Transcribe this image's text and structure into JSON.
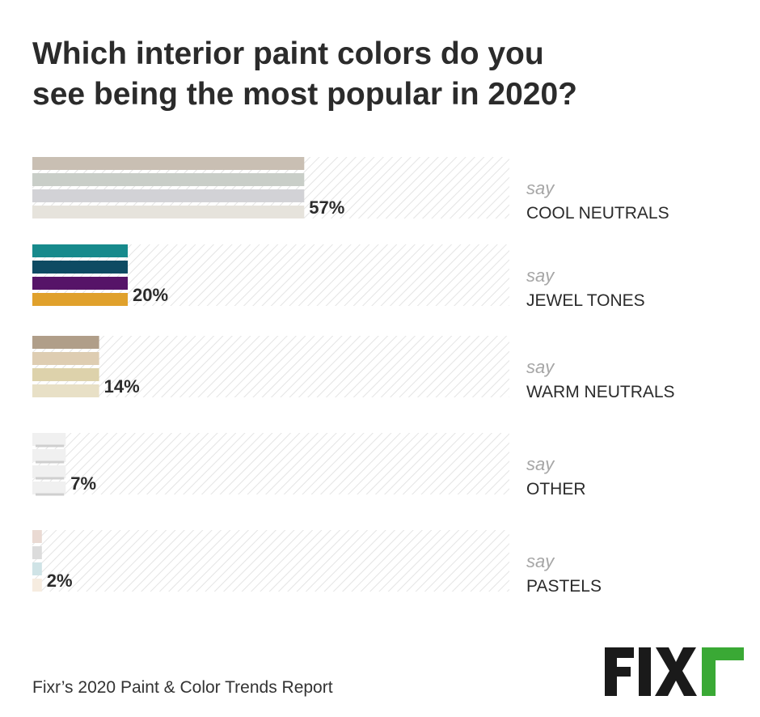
{
  "title_lines": [
    "Which interior paint colors do you",
    "see being the most popular in 2020?"
  ],
  "footer": "Fixr’s 2020 Paint & Color Trends Report",
  "logo_text": "FIXR",
  "chart_data": {
    "type": "bar",
    "orientation": "horizontal",
    "title": "Which interior paint colors do you see being the most popular in 2020?",
    "xlim": [
      0,
      100
    ],
    "value_suffix": "%",
    "legend_prefix": "say",
    "categories": [
      "COOL NEUTRALS",
      "JEWEL TONES",
      "WARM NEUTRALS",
      "OTHER",
      "PASTELS"
    ],
    "values": [
      57,
      20,
      14,
      7,
      2
    ],
    "labels": [
      "57%",
      "20%",
      "14%",
      "7%",
      "2%"
    ],
    "swatch_colors": [
      [
        "#c9bfb3",
        "#c9cec8",
        "#d2d2d6",
        "#e6e3dc"
      ],
      [
        "#178a8c",
        "#0e4b63",
        "#561468",
        "#e0a12c"
      ],
      [
        "#b09e89",
        "#decdb2",
        "#ddd2ab",
        "#e8e0c6"
      ],
      [
        "#f0f0f0",
        "#f0f0f0",
        "#f0f0f0",
        "#f0f0f0"
      ],
      [
        "#eadad3",
        "#dcdcdc",
        "#cfe3e6",
        "#f6ece0"
      ]
    ],
    "grid": false
  }
}
